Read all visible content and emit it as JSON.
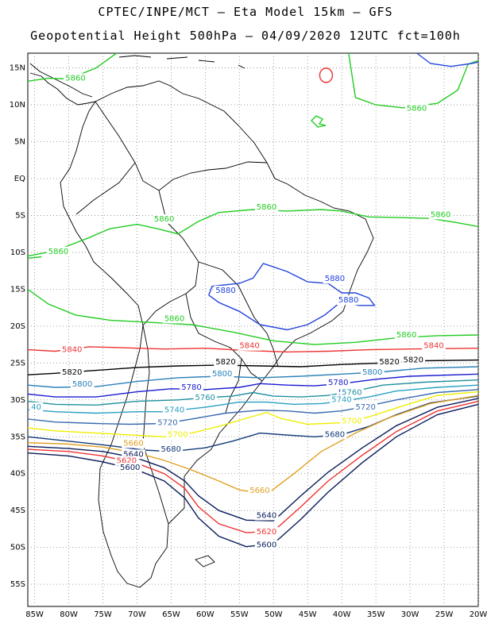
{
  "header": {
    "line1": "CPTEC/INPE/MCT –  Eta Model 15km – GFS",
    "line2": "Geopotential Height 500hPa – 04/09/2020 12UTC fct=100h"
  },
  "axes": {
    "lat_labels": [
      "15N",
      "10N",
      "5N",
      "EQ",
      "5S",
      "10S",
      "15S",
      "20S",
      "25S",
      "30S",
      "35S",
      "40S",
      "45S",
      "50S",
      "55S"
    ],
    "lon_labels": [
      "85W",
      "80W",
      "75W",
      "70W",
      "65W",
      "60W",
      "55W",
      "50W",
      "45W",
      "40W",
      "35W",
      "30W",
      "25W",
      "20W"
    ],
    "lat_range": [
      -58,
      17
    ],
    "lon_range": [
      -86,
      -20
    ],
    "grid": true
  },
  "colors": {
    "c5880": "#2244dd",
    "c5860": "#22cc22",
    "c5840": "#ee3333",
    "c5820": "#000000",
    "c5800": "#2a80b8",
    "c5780": "#1a1ad0",
    "c5760": "#1f90a0",
    "c5740": "#28a0c0",
    "c5720": "#3a6ab0",
    "c5700": "#eeee00",
    "c5680": "#123a78",
    "c5660": "#e0a020",
    "c5640": "#0a1c5a",
    "c5620": "#ee3333",
    "c5600": "#0a1c5a"
  },
  "contour_labels": [
    {
      "text": "5860",
      "color": "c5860",
      "lon": -80.5,
      "lat": 13.3
    },
    {
      "text": "5860",
      "color": "c5860",
      "lon": -30.5,
      "lat": 9.2
    },
    {
      "text": "5860",
      "color": "c5860",
      "lon": -67.5,
      "lat": -5.8
    },
    {
      "text": "5860",
      "color": "c5860",
      "lon": -83.0,
      "lat": -10.2
    },
    {
      "text": "5860",
      "color": "c5860",
      "lon": -52.5,
      "lat": -4.2
    },
    {
      "text": "5860",
      "color": "c5860",
      "lon": -27.0,
      "lat": -5.2
    },
    {
      "text": "5860",
      "color": "c5860",
      "lon": -66.0,
      "lat": -19.3
    },
    {
      "text": "5860",
      "color": "c5860",
      "lon": -32.0,
      "lat": -21.5
    },
    {
      "text": "5880",
      "color": "c5880",
      "lon": -42.5,
      "lat": -13.9
    },
    {
      "text": "5880",
      "color": "c5880",
      "lon": -58.5,
      "lat": -15.5
    },
    {
      "text": "5880",
      "color": "c5880",
      "lon": -40.5,
      "lat": -16.8
    },
    {
      "text": "5840",
      "color": "c5840",
      "lon": -81.0,
      "lat": -23.5
    },
    {
      "text": "5840",
      "color": "c5840",
      "lon": -55.0,
      "lat": -23.0
    },
    {
      "text": "5840",
      "color": "c5840",
      "lon": -28.0,
      "lat": -23.0
    },
    {
      "text": "5820",
      "color": "c5820",
      "lon": -81.0,
      "lat": -26.6
    },
    {
      "text": "5820",
      "color": "c5820",
      "lon": -58.5,
      "lat": -25.2
    },
    {
      "text": "5820",
      "color": "c5820",
      "lon": -34.5,
      "lat": -25.2
    },
    {
      "text": "5820",
      "color": "c5820",
      "lon": -31.0,
      "lat": -24.9
    },
    {
      "text": "5800",
      "color": "c5800",
      "lon": -79.5,
      "lat": -28.2
    },
    {
      "text": "5800",
      "color": "c5800",
      "lon": -59.0,
      "lat": -26.8
    },
    {
      "text": "5800",
      "color": "c5800",
      "lon": -37.0,
      "lat": -26.6
    },
    {
      "text": "5780",
      "color": "c5780",
      "lon": -63.5,
      "lat": -28.6
    },
    {
      "text": "5780",
      "color": "c5780",
      "lon": -42.0,
      "lat": -28.0
    },
    {
      "text": "5780",
      "color": "c5780",
      "lon": -40.5,
      "lat": -29.3
    },
    {
      "text": "5760",
      "color": "c5760",
      "lon": -61.5,
      "lat": -30.0
    },
    {
      "text": "5760",
      "color": "c5760",
      "lon": -40.0,
      "lat": -29.3
    },
    {
      "text": "5740",
      "color": "c5740",
      "lon": -66.0,
      "lat": -31.7
    },
    {
      "text": "5740",
      "color": "c5740",
      "lon": -41.5,
      "lat": -30.3
    },
    {
      "text": "5720",
      "color": "c5720",
      "lon": -67.0,
      "lat": -33.4
    },
    {
      "text": "5720",
      "color": "c5720",
      "lon": -38.0,
      "lat": -31.3
    },
    {
      "text": "40",
      "color": "c5740",
      "lon": -85.5,
      "lat": -31.3
    },
    {
      "text": "5700",
      "color": "c5700",
      "lon": -65.5,
      "lat": -35.0
    },
    {
      "text": "5700",
      "color": "c5700",
      "lon": -40.0,
      "lat": -33.2
    },
    {
      "text": "5680",
      "color": "c5680",
      "lon": -66.5,
      "lat": -37.0
    },
    {
      "text": "5680",
      "color": "c5680",
      "lon": -42.5,
      "lat": -35.0
    },
    {
      "text": "5660",
      "color": "c5660",
      "lon": -72.0,
      "lat": -36.2
    },
    {
      "text": "5640",
      "color": "c5640",
      "lon": -72.0,
      "lat": -37.7
    },
    {
      "text": "5620",
      "color": "c5620",
      "lon": -73.0,
      "lat": -38.6
    },
    {
      "text": "5600",
      "color": "c5600",
      "lon": -72.5,
      "lat": -39.5
    },
    {
      "text": "5660",
      "color": "c5660",
      "lon": -53.5,
      "lat": -42.6
    },
    {
      "text": "5640",
      "color": "c5640",
      "lon": -52.5,
      "lat": -46.0
    },
    {
      "text": "5620",
      "color": "c5620",
      "lon": -52.5,
      "lat": -48.2
    },
    {
      "text": "5600",
      "color": "c5600",
      "lon": -52.5,
      "lat": -50.0
    }
  ]
}
